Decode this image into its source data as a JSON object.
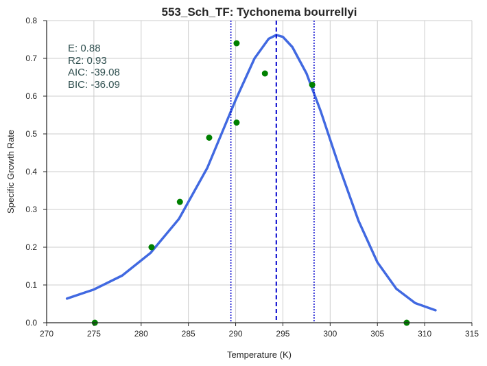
{
  "chart_data": {
    "type": "line",
    "title": "553_Sch_TF: Tychonema bourrellyi",
    "xlabel": "Temperature (K)",
    "ylabel": "Specific Growth Rate",
    "xlim": [
      270,
      315
    ],
    "ylim": [
      0.0,
      0.8
    ],
    "xticks": [
      270,
      275,
      280,
      285,
      290,
      295,
      300,
      305,
      310,
      315
    ],
    "yticks": [
      0.0,
      0.1,
      0.2,
      0.3,
      0.4,
      0.5,
      0.6,
      0.7,
      0.8
    ],
    "ytick_labels": [
      "0.0",
      "0.1",
      "0.2",
      "0.3",
      "0.4",
      "0.5",
      "0.6",
      "0.7",
      "0.8"
    ],
    "grid": true,
    "points": [
      {
        "x": 275.1,
        "y": 0.0
      },
      {
        "x": 281.1,
        "y": 0.2
      },
      {
        "x": 284.1,
        "y": 0.32
      },
      {
        "x": 287.2,
        "y": 0.49
      },
      {
        "x": 290.1,
        "y": 0.74
      },
      {
        "x": 290.1,
        "y": 0.53
      },
      {
        "x": 293.1,
        "y": 0.66
      },
      {
        "x": 298.1,
        "y": 0.63
      },
      {
        "x": 308.1,
        "y": 0.0
      }
    ],
    "fit_curve": {
      "x": [
        272.15,
        275.0,
        278.0,
        281.0,
        284.0,
        287.0,
        290.0,
        292.0,
        293.5,
        294.3,
        295.0,
        296.0,
        297.5,
        299.0,
        301.0,
        303.0,
        305.0,
        307.0,
        309.0,
        311.15
      ],
      "y": [
        0.064,
        0.088,
        0.125,
        0.185,
        0.275,
        0.41,
        0.59,
        0.7,
        0.752,
        0.762,
        0.757,
        0.73,
        0.66,
        0.56,
        0.41,
        0.27,
        0.16,
        0.09,
        0.052,
        0.033
      ]
    },
    "vlines": [
      {
        "x": 294.3,
        "style": "dashed"
      },
      {
        "x": 289.5,
        "style": "dotted"
      },
      {
        "x": 298.3,
        "style": "dotted"
      }
    ],
    "stats_text": [
      "E:  0.88",
      "R2:  0.93",
      "AIC: -39.08",
      "BIC: -36.09"
    ],
    "colors": {
      "curve": "#4169e1",
      "points": "#008000",
      "vlines": "#0000cd",
      "grid": "#cccccc",
      "axis": "#262626",
      "stats": "#2f4f4f"
    }
  }
}
